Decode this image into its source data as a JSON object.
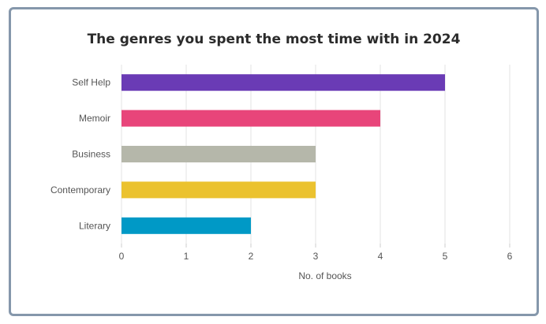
{
  "chart_data": {
    "type": "bar",
    "orientation": "horizontal",
    "title": "The genres you spent the most time with in 2024",
    "xlabel": "No. of books",
    "ylabel": "",
    "xlim": [
      0,
      6
    ],
    "x_ticks": [
      0,
      1,
      2,
      3,
      4,
      5,
      6
    ],
    "grid": true,
    "categories": [
      "Self Help",
      "Memoir",
      "Business",
      "Contemporary",
      "Literary"
    ],
    "values": [
      5,
      4,
      3,
      3,
      2
    ],
    "colors": [
      "#6a3bb5",
      "#e8457a",
      "#b5b7aa",
      "#ebc22f",
      "#0099c6"
    ]
  }
}
